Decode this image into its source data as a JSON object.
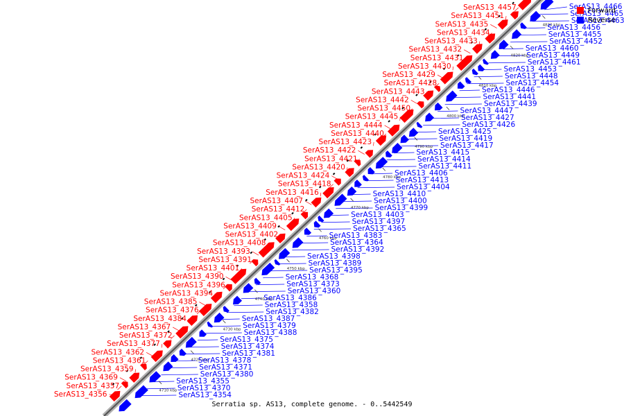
{
  "legend": {
    "forward_label": "Forward",
    "reverse_label": "Reverse",
    "forward_color": "#ff0000",
    "reverse_color": "#0000ff"
  },
  "caption": "Serratia sp. AS13, complete genome. - 0..5442549",
  "axis": {
    "start_kbp": 4700,
    "end_kbp": 4830,
    "ticks": [
      "4710 kbp",
      "4720 kbp",
      "4730 kbp",
      "4740 kbp",
      "4750 kbp",
      "4760 kbp",
      "4770 kbp",
      "4780 kbp",
      "4790 kbp",
      "4800 kbp",
      "4810 kbp",
      "4820 kbp",
      "4830 kbp"
    ]
  },
  "forward_genes": [
    "SerAS13_4457",
    "SerAS13_4451",
    "SerAS13_4435",
    "SerAS13_4434",
    "SerAS13_4433",
    "SerAS13_4432",
    "SerAS13_4431",
    "SerAS13_4430",
    "SerAS13_4429",
    "SerAS13_4428",
    "SerAS13_4443",
    "SerAS13_4442",
    "SerAS13_4450",
    "SerAS13_4445",
    "SerAS13_4444",
    "SerAS13_4440",
    "SerAS13_4423",
    "SerAS13_4422",
    "SerAS13_4421",
    "SerAS13_4420",
    "SerAS13_4424",
    "SerAS13_4418",
    "SerAS13_4416",
    "SerAS13_4407",
    "SerAS13_4412",
    "SerAS13_4405",
    "SerAS13_4409",
    "SerAS13_4402",
    "SerAS13_4408",
    "SerAS13_4393",
    "SerAS13_4391",
    "SerAS13_4401",
    "SerAS13_4390",
    "SerAS13_4396",
    "SerAS13_4394",
    "SerAS13_4385",
    "SerAS13_4376",
    "SerAS13_4384",
    "SerAS13_4367",
    "SerAS13_4372",
    "SerAS13_4377",
    "SerAS13_4362",
    "SerAS13_4361",
    "SerAS13_4359",
    "SerAS13_4369",
    "SerAS13_4357",
    "SerAS13_4356"
  ],
  "reverse_genes": [
    "SerAS13_4466",
    "SerAS13_4465",
    "SerAS13_4463",
    "SerAS13_4456",
    "SerAS13_4455",
    "SerAS13_4452",
    "SerAS13_4460",
    "SerAS13_4449",
    "SerAS13_4461",
    "SerAS13_4453",
    "SerAS13_4448",
    "SerAS13_4454",
    "SerAS13_4446",
    "SerAS13_4441",
    "SerAS13_4439",
    "SerAS13_4447",
    "SerAS13_4427",
    "SerAS13_4426",
    "SerAS13_4425",
    "SerAS13_4419",
    "SerAS13_4417",
    "SerAS13_4415",
    "SerAS13_4414",
    "SerAS13_4411",
    "SerAS13_4406",
    "SerAS13_4413",
    "SerAS13_4404",
    "SerAS13_4410",
    "SerAS13_4400",
    "SerAS13_4399",
    "SerAS13_4403",
    "SerAS13_4397",
    "SerAS13_4365",
    "SerAS13_4383",
    "SerAS13_4364",
    "SerAS13_4392",
    "SerAS13_4398",
    "SerAS13_4389",
    "SerAS13_4395",
    "SerAS13_4368",
    "SerAS13_4373",
    "SerAS13_4360",
    "SerAS13_4386",
    "SerAS13_4358",
    "SerAS13_4382",
    "SerAS13_4387",
    "SerAS13_4379",
    "SerAS13_4388",
    "SerAS13_4375",
    "SerAS13_4374",
    "SerAS13_4381",
    "SerAS13_4378",
    "SerAS13_4371",
    "SerAS13_4380",
    "SerAS13_4355",
    "SerAS13_4370",
    "SerAS13_4354"
  ]
}
